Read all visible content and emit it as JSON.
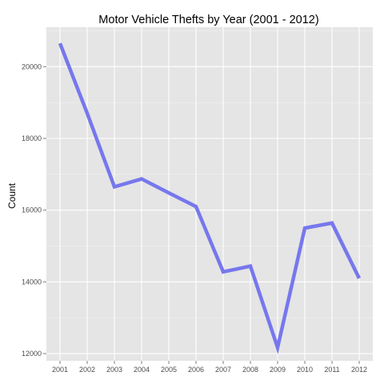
{
  "chart_data": {
    "type": "line",
    "title": "Motor Vehicle Thefts by Year (2001 - 2012)",
    "xlabel": "",
    "ylabel": "Count",
    "x": [
      2001,
      2002,
      2003,
      2004,
      2005,
      2006,
      2007,
      2008,
      2009,
      2010,
      2011,
      2012
    ],
    "x_tick_labels": [
      "2001",
      "2002",
      "2003",
      "2004",
      "2005",
      "2006",
      "2007",
      "2008",
      "2009",
      "2010",
      "2011",
      "2012"
    ],
    "values": [
      20650,
      18700,
      16650,
      16870,
      16480,
      16100,
      14280,
      14440,
      12170,
      15500,
      15640,
      14100
    ],
    "y_ticks": [
      12000,
      14000,
      16000,
      18000,
      20000
    ],
    "y_tick_labels": [
      "12000",
      "14000",
      "16000",
      "18000",
      "20000"
    ],
    "ylim": [
      11800,
      21100
    ],
    "xlim": [
      2000.5,
      2012.5
    ],
    "grid": true,
    "legend": "none",
    "colors": {
      "line": "#7777ee",
      "panel_background": "#e5e5e5",
      "grid_major": "#ffffff",
      "grid_minor": "#f2f2f2"
    }
  }
}
